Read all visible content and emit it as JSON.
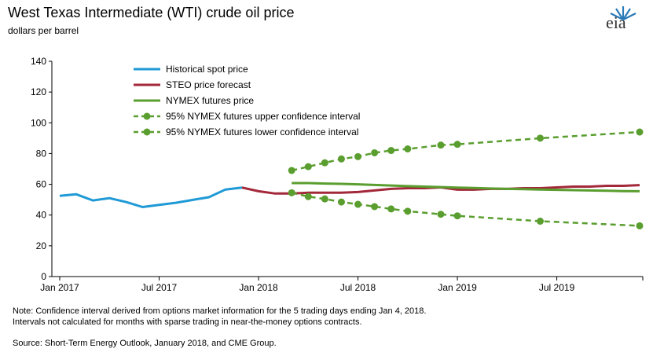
{
  "header": {
    "title": "West Texas Intermediate (WTI) crude oil price",
    "subtitle": "dollars per barrel",
    "logo_text": "eia"
  },
  "notes": {
    "note": "Note: Confidence interval derived from options market information for the 5 trading days ending Jan 4, 2018. Intervals not calculated for months with sparse trading in near-the-money options contracts.",
    "source": "Source: Short-Term Energy Outlook, January 2018, and CME Group."
  },
  "colors": {
    "historical": "#1f9ad6",
    "steo": "#a3283a",
    "nymex": "#5a9e2f",
    "confidence": "#5a9e2f"
  },
  "chart_data": {
    "type": "line",
    "ylim": [
      0,
      140
    ],
    "yticks": [
      0,
      20,
      40,
      60,
      80,
      100,
      120,
      140
    ],
    "xlim": [
      "2017-01",
      "2019-12"
    ],
    "xticks": [
      {
        "month": "2017-01",
        "label": "Jan 2017"
      },
      {
        "month": "2017-07",
        "label": "Jul 2017"
      },
      {
        "month": "2018-01",
        "label": "Jan 2018"
      },
      {
        "month": "2018-07",
        "label": "Jul 2018"
      },
      {
        "month": "2019-01",
        "label": "Jan 2019"
      },
      {
        "month": "2019-07",
        "label": "Jul 2019"
      }
    ],
    "grid": false,
    "legend_position": "top-left",
    "series": [
      {
        "name": "Historical spot price",
        "key": "historical",
        "style": "solid",
        "points": [
          [
            "2017-01",
            52.5
          ],
          [
            "2017-02",
            53.5
          ],
          [
            "2017-03",
            49.5
          ],
          [
            "2017-04",
            51.0
          ],
          [
            "2017-05",
            48.5
          ],
          [
            "2017-06",
            45.2
          ],
          [
            "2017-07",
            46.6
          ],
          [
            "2017-08",
            48.0
          ],
          [
            "2017-09",
            49.8
          ],
          [
            "2017-10",
            51.6
          ],
          [
            "2017-11",
            56.6
          ],
          [
            "2017-12",
            57.9
          ]
        ]
      },
      {
        "name": "STEO price forecast",
        "key": "steo",
        "style": "solid",
        "points": [
          [
            "2017-12",
            57.9
          ],
          [
            "2018-01",
            55.5
          ],
          [
            "2018-02",
            54.0
          ],
          [
            "2018-03",
            54.0
          ],
          [
            "2018-04",
            54.5
          ],
          [
            "2018-05",
            54.5
          ],
          [
            "2018-06",
            54.5
          ],
          [
            "2018-07",
            55.0
          ],
          [
            "2018-08",
            56.0
          ],
          [
            "2018-09",
            57.0
          ],
          [
            "2018-10",
            57.5
          ],
          [
            "2018-11",
            57.5
          ],
          [
            "2018-12",
            58.0
          ],
          [
            "2019-01",
            56.5
          ],
          [
            "2019-02",
            56.5
          ],
          [
            "2019-03",
            57.0
          ],
          [
            "2019-04",
            57.0
          ],
          [
            "2019-05",
            57.5
          ],
          [
            "2019-06",
            57.5
          ],
          [
            "2019-07",
            58.0
          ],
          [
            "2019-08",
            58.5
          ],
          [
            "2019-09",
            58.5
          ],
          [
            "2019-10",
            59.0
          ],
          [
            "2019-11",
            59.0
          ],
          [
            "2019-12",
            59.5
          ]
        ]
      },
      {
        "name": "NYMEX futures price",
        "key": "nymex",
        "style": "solid",
        "points": [
          [
            "2018-03",
            60.8
          ],
          [
            "2018-04",
            60.8
          ],
          [
            "2018-05",
            60.5
          ],
          [
            "2018-06",
            60.3
          ],
          [
            "2018-07",
            60.0
          ],
          [
            "2018-08",
            59.6
          ],
          [
            "2018-09",
            59.2
          ],
          [
            "2018-10",
            58.8
          ],
          [
            "2018-11",
            58.5
          ],
          [
            "2018-12",
            58.2
          ],
          [
            "2019-01",
            57.9
          ],
          [
            "2019-02",
            57.6
          ],
          [
            "2019-03",
            57.3
          ],
          [
            "2019-04",
            57.0
          ],
          [
            "2019-05",
            56.8
          ],
          [
            "2019-06",
            56.6
          ],
          [
            "2019-07",
            56.4
          ],
          [
            "2019-08",
            56.2
          ],
          [
            "2019-09",
            56.0
          ],
          [
            "2019-10",
            55.8
          ],
          [
            "2019-11",
            55.6
          ],
          [
            "2019-12",
            55.5
          ]
        ]
      },
      {
        "name": "95% NYMEX futures upper confidence interval",
        "key": "upper",
        "style": "dashed-dots",
        "points": [
          [
            "2018-03",
            69.0
          ],
          [
            "2018-04",
            71.5
          ],
          [
            "2018-05",
            74.0
          ],
          [
            "2018-06",
            76.5
          ],
          [
            "2018-07",
            78.0
          ],
          [
            "2018-08",
            80.5
          ],
          [
            "2018-09",
            82.0
          ],
          [
            "2018-10",
            83.0
          ],
          [
            "2018-12",
            85.5
          ],
          [
            "2019-01",
            86.0
          ],
          [
            "2019-06",
            90.0
          ],
          [
            "2019-12",
            94.0
          ]
        ],
        "markers": [
          "2018-03",
          "2018-04",
          "2018-05",
          "2018-06",
          "2018-07",
          "2018-08",
          "2018-09",
          "2018-10",
          "2018-12",
          "2019-01",
          "2019-06",
          "2019-12"
        ]
      },
      {
        "name": "95% NYMEX futures lower confidence interval",
        "key": "lower",
        "style": "dashed-dots",
        "points": [
          [
            "2018-03",
            54.5
          ],
          [
            "2018-04",
            52.0
          ],
          [
            "2018-05",
            50.5
          ],
          [
            "2018-06",
            48.5
          ],
          [
            "2018-07",
            47.0
          ],
          [
            "2018-08",
            45.5
          ],
          [
            "2018-09",
            44.0
          ],
          [
            "2018-10",
            42.5
          ],
          [
            "2018-12",
            40.5
          ],
          [
            "2019-01",
            39.5
          ],
          [
            "2019-06",
            36.0
          ],
          [
            "2019-12",
            33.0
          ]
        ],
        "markers": [
          "2018-03",
          "2018-04",
          "2018-05",
          "2018-06",
          "2018-07",
          "2018-08",
          "2018-09",
          "2018-10",
          "2018-12",
          "2019-01",
          "2019-06",
          "2019-12"
        ]
      }
    ]
  }
}
